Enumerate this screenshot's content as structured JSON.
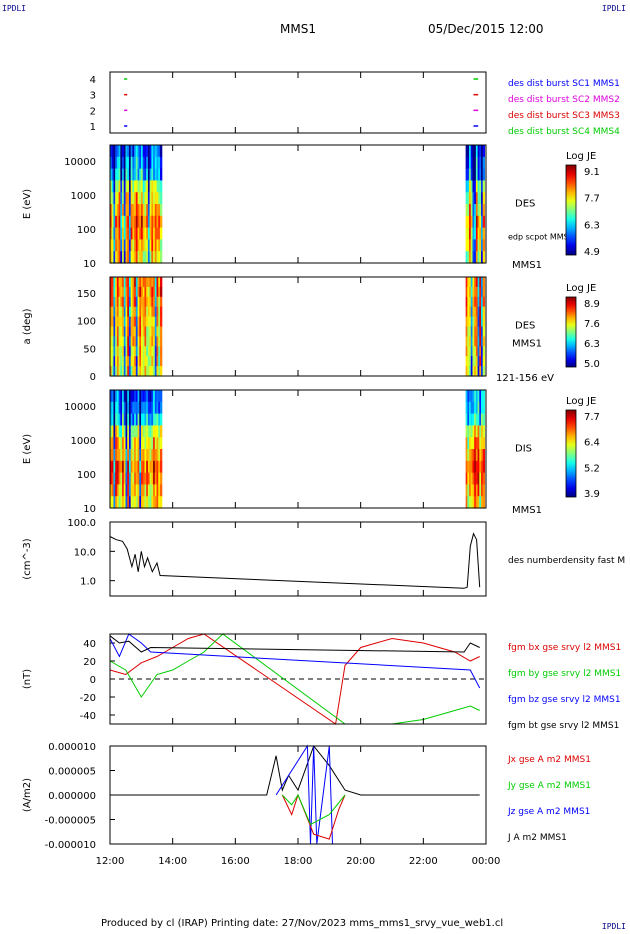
{
  "header": {
    "corner_label": "IPDLI",
    "title": "MMS1",
    "datetime": "05/Dec/2015 12:00"
  },
  "footer": {
    "text": "Produced by cl (IRAP)   Printing date: 27/Nov/2023   mms_mms1_srvy_vue_web1.cl"
  },
  "chart_data": [
    {
      "type": "scatter",
      "yticks": [
        "4",
        "3",
        "2",
        "1"
      ],
      "legend": [
        {
          "label": "des dist burst SC1 MMS1",
          "color": "#0000ff"
        },
        {
          "label": "des dist burst SC2 MMS2",
          "color": "#dd00dd"
        },
        {
          "label": "des dist burst SC3 MMS3",
          "color": "#dd0000"
        },
        {
          "label": "des dist burst SC4 MMS4",
          "color": "#00cc00"
        }
      ],
      "segments": [
        {
          "sc": 4,
          "t": [
            0.45,
            0.55
          ],
          "color": "#00cc00"
        },
        {
          "sc": 3,
          "t": [
            0.45,
            0.55
          ],
          "color": "#dd0000"
        },
        {
          "sc": 2,
          "t": [
            0.45,
            0.55
          ],
          "color": "#dd00dd"
        },
        {
          "sc": 1,
          "t": [
            0.45,
            0.55
          ],
          "color": "#0000ff"
        },
        {
          "sc": 4,
          "t": [
            11.6,
            11.75
          ],
          "color": "#00cc00"
        },
        {
          "sc": 3,
          "t": [
            11.6,
            11.75
          ],
          "color": "#dd0000"
        },
        {
          "sc": 2,
          "t": [
            11.6,
            11.75
          ],
          "color": "#dd00dd"
        },
        {
          "sc": 1,
          "t": [
            11.6,
            11.75
          ],
          "color": "#0000ff"
        }
      ]
    },
    {
      "type": "heatmap",
      "ylabel": "E (eV)",
      "yscale": "log",
      "yticks": [
        "10000",
        "1000",
        "100",
        "10"
      ],
      "side_label": "DES",
      "side_label2": "edp scpot MMS1",
      "bottom_label": "MMS1",
      "colorbar": {
        "title": "Log JE",
        "ticks": [
          "9.1",
          "7.7",
          "6.3",
          "4.9"
        ]
      },
      "data_intervals": [
        [
          0.0,
          1.65
        ],
        [
          11.35,
          11.95
        ]
      ]
    },
    {
      "type": "heatmap",
      "ylabel": "a (deg)",
      "yticks": [
        "150",
        "100",
        "50",
        "0"
      ],
      "side_label": "DES",
      "side_label2": "MMS1",
      "bottom_label": "121-156 eV",
      "colorbar": {
        "title": "Log JE",
        "ticks": [
          "8.9",
          "7.6",
          "6.3",
          "5.0"
        ]
      },
      "data_intervals": [
        [
          0.0,
          1.65
        ],
        [
          11.35,
          11.95
        ]
      ]
    },
    {
      "type": "heatmap",
      "ylabel": "E (eV)",
      "yscale": "log",
      "yticks": [
        "10000",
        "1000",
        "100",
        "10"
      ],
      "side_label": "DIS",
      "bottom_label": "MMS1",
      "colorbar": {
        "title": "Log JE",
        "ticks": [
          "7.7",
          "6.4",
          "5.2",
          "3.9"
        ]
      },
      "data_intervals": [
        [
          0.0,
          1.65
        ],
        [
          11.35,
          11.95
        ]
      ]
    },
    {
      "type": "line",
      "ylabel": "(cm^-3)",
      "yscale": "log",
      "ylim": [
        0.3,
        100
      ],
      "yticks": [
        "100.0",
        "10.0",
        "1.0"
      ],
      "legend": [
        {
          "label": "des numberdensity fast M",
          "color": "#000000"
        }
      ],
      "series": [
        {
          "name": "des numberdensity fast",
          "color": "#000000",
          "x": [
            0.0,
            0.2,
            0.4,
            0.55,
            0.7,
            0.8,
            0.9,
            1.0,
            1.1,
            1.2,
            1.35,
            1.5,
            1.6,
            11.3,
            11.4,
            11.5,
            11.6,
            11.7,
            11.8
          ],
          "y": [
            32,
            25,
            22,
            12,
            3,
            8,
            2,
            10,
            3,
            6,
            2,
            4,
            1.5,
            0.55,
            0.6,
            15,
            40,
            25,
            0.6
          ]
        }
      ]
    },
    {
      "type": "line",
      "ylabel": "(nT)",
      "ylim": [
        -50,
        50
      ],
      "yticks": [
        "40",
        "20",
        "0",
        "-20",
        "-40"
      ],
      "legend": [
        {
          "label": "fgm bx gse srvy l2 MMS1",
          "color": "#dd0000"
        },
        {
          "label": "fgm by gse srvy l2 MMS1",
          "color": "#00cc00"
        },
        {
          "label": "fgm bz gse srvy l2 MMS1",
          "color": "#0000ff"
        },
        {
          "label": "fgm bt gse srvy l2 MMS1",
          "color": "#000000"
        }
      ],
      "series": [
        {
          "name": "fgm bx",
          "color": "#dd0000",
          "x": [
            0.0,
            0.5,
            1.0,
            1.5,
            2.0,
            2.5,
            3.0,
            7.2,
            7.5,
            8.0,
            8.5,
            9.0,
            10.0,
            11.0,
            11.5,
            11.8
          ],
          "y": [
            10,
            5,
            18,
            25,
            35,
            45,
            50,
            -50,
            15,
            35,
            40,
            45,
            40,
            30,
            20,
            25
          ]
        },
        {
          "name": "fgm by",
          "color": "#00cc00",
          "x": [
            0.0,
            0.5,
            1.0,
            1.5,
            2.0,
            2.5,
            3.0,
            3.6,
            7.5,
            9.0,
            10.0,
            11.0,
            11.5,
            11.8
          ],
          "y": [
            20,
            10,
            -20,
            5,
            10,
            20,
            30,
            50,
            -50,
            -50,
            -45,
            -35,
            -30,
            -35
          ]
        },
        {
          "name": "fgm bz",
          "color": "#0000ff",
          "x": [
            0.0,
            0.3,
            0.6,
            1.0,
            1.3,
            11.5,
            11.8
          ],
          "y": [
            45,
            25,
            50,
            40,
            30,
            10,
            -10
          ]
        },
        {
          "name": "fgm bt",
          "color": "#000000",
          "x": [
            0.0,
            0.3,
            0.6,
            1.0,
            1.3,
            11.3,
            11.5,
            11.8
          ],
          "y": [
            48,
            40,
            42,
            30,
            35,
            30,
            40,
            35
          ]
        }
      ]
    },
    {
      "type": "line",
      "ylabel": "(A/m2)",
      "ylim": [
        -1e-05,
        1e-05
      ],
      "yticks": [
        "0.000010",
        "0.000005",
        "0.000000",
        "-0.000005",
        "-0.000010"
      ],
      "legend": [
        {
          "label": "Jx gse A m2 MMS1",
          "color": "#dd0000"
        },
        {
          "label": "Jy gse A m2 MMS1",
          "color": "#00cc00"
        },
        {
          "label": "Jz gse A m2 MMS1",
          "color": "#0000ff"
        },
        {
          "label": "J A m2 MMS1",
          "color": "#000000"
        }
      ],
      "series": [
        {
          "name": "J",
          "color": "#000000",
          "x": [
            0.0,
            5.0,
            5.3,
            5.5,
            5.7,
            6.0,
            6.5,
            7.0,
            7.5,
            8.0,
            11.8
          ],
          "y": [
            0,
            0,
            8e-06,
            1e-06,
            4e-06,
            1e-06,
            1e-05,
            6e-06,
            1e-06,
            0,
            0
          ]
        },
        {
          "name": "Jz",
          "color": "#0000ff",
          "x": [
            5.3,
            6.3,
            6.4,
            6.5,
            6.6,
            7.0,
            7.1
          ],
          "y": [
            0,
            1e-05,
            -1e-05,
            1e-05,
            -1e-05,
            1e-05,
            -1e-05
          ]
        },
        {
          "name": "Jx",
          "color": "#dd0000",
          "x": [
            5.5,
            5.8,
            6.0,
            6.5,
            7.0,
            7.3,
            7.5
          ],
          "y": [
            0,
            -4e-06,
            0,
            -8e-06,
            -9e-06,
            -3e-06,
            0
          ]
        },
        {
          "name": "Jy",
          "color": "#00cc00",
          "x": [
            5.5,
            5.8,
            6.0,
            6.4,
            7.0,
            7.5
          ],
          "y": [
            0,
            -2e-06,
            0,
            -6e-06,
            -4e-06,
            0
          ]
        }
      ]
    }
  ],
  "xaxis": {
    "ticks": [
      {
        "hour": 0,
        "label": "12:00"
      },
      {
        "hour": 2,
        "label": "14:00"
      },
      {
        "hour": 4,
        "label": "16:00"
      },
      {
        "hour": 6,
        "label": "18:00"
      },
      {
        "hour": 8,
        "label": "20:00"
      },
      {
        "hour": 10,
        "label": "22:00"
      },
      {
        "hour": 12,
        "label": "00:00"
      }
    ]
  }
}
